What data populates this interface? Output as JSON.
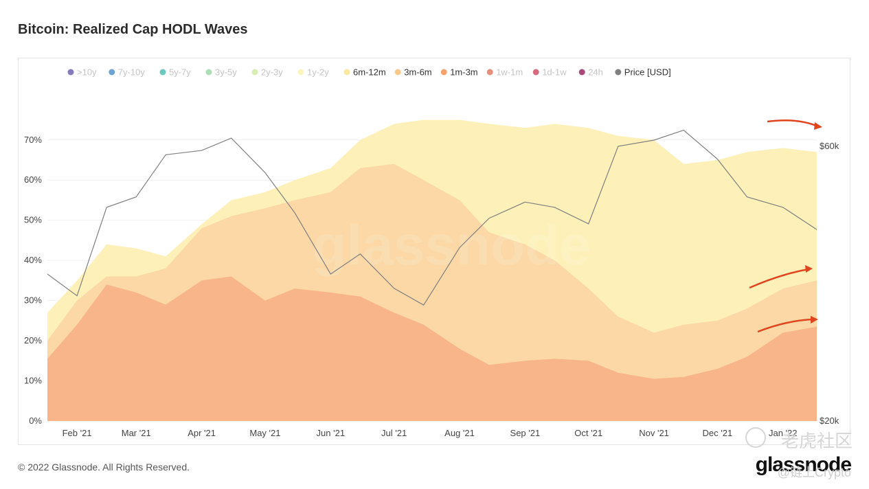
{
  "title": "Bitcoin: Realized Cap HODL Waves",
  "footer": {
    "copyright": "© 2022 Glassnode. All Rights Reserved.",
    "logo": "glassnode"
  },
  "watermarks": {
    "chart_center": "glassnode",
    "cn_community": "老虎社区",
    "handle": "@链上Crypto"
  },
  "chart_data": {
    "type": "area",
    "title": "Bitcoin: Realized Cap HODL Waves",
    "stacked": true,
    "legend_position": "top",
    "legend": [
      {
        "name": ">10y",
        "color": "#5b4ea6",
        "dim": true
      },
      {
        "name": "7y-10y",
        "color": "#3d86c6",
        "dim": true
      },
      {
        "name": "5y-7y",
        "color": "#39b3a7",
        "dim": true
      },
      {
        "name": "3y-5y",
        "color": "#8fd19e",
        "dim": true
      },
      {
        "name": "2y-3y",
        "color": "#cbe89b",
        "dim": true
      },
      {
        "name": "1y-2y",
        "color": "#f7f3a8",
        "dim": true
      },
      {
        "name": "6m-12m",
        "color": "#fbe9a3",
        "dim": false
      },
      {
        "name": "3m-6m",
        "color": "#f9c98a",
        "dim": false
      },
      {
        "name": "1m-3m",
        "color": "#f4a36c",
        "dim": false
      },
      {
        "name": "1w-1m",
        "color": "#e06a51",
        "dim": true
      },
      {
        "name": "1d-1w",
        "color": "#c93a55",
        "dim": true
      },
      {
        "name": "24h",
        "color": "#8a0d4c",
        "dim": true
      },
      {
        "name": "Price [USD]",
        "color": "#7f7f7f",
        "dim": false
      }
    ],
    "y_left_ticks": [
      "0%",
      "10%",
      "20%",
      "30%",
      "40%",
      "50%",
      "60%",
      "70%"
    ],
    "y_left_range": [
      0,
      78
    ],
    "y_right_ticks": [
      "$20k",
      "$60k"
    ],
    "y_right_log": true,
    "x_tick_labels": [
      "Feb '21",
      "Mar '21",
      "Apr '21",
      "May '21",
      "Jun '21",
      "Jul '21",
      "Aug '21",
      "Sep '21",
      "Oct '21",
      "Nov '21",
      "Dec '21",
      "Jan '22"
    ],
    "x": [
      "2021-01-18",
      "2021-02-01",
      "2021-02-15",
      "2021-03-01",
      "2021-03-15",
      "2021-04-01",
      "2021-04-15",
      "2021-05-01",
      "2021-05-15",
      "2021-06-01",
      "2021-06-15",
      "2021-07-01",
      "2021-07-15",
      "2021-08-01",
      "2021-08-15",
      "2021-09-01",
      "2021-09-15",
      "2021-10-01",
      "2021-10-15",
      "2021-11-01",
      "2021-11-15",
      "2021-12-01",
      "2021-12-15",
      "2022-01-01",
      "2022-01-17"
    ],
    "series": [
      {
        "name": "1m-3m",
        "color": "#f9b58a",
        "values": [
          15.5,
          24,
          34,
          32,
          29,
          35,
          36,
          30,
          33,
          32,
          31,
          27,
          24,
          18,
          14,
          15,
          15.5,
          15,
          12,
          10.5,
          11,
          13,
          16,
          22,
          23.5
        ]
      },
      {
        "name": "3m-6m",
        "color": "#fbd8a6",
        "values": [
          20,
          30,
          36,
          36,
          38,
          48,
          51,
          53,
          55,
          57,
          63,
          64,
          60,
          55,
          47,
          44,
          40,
          33,
          26,
          22,
          24,
          25,
          28,
          33,
          35
        ]
      },
      {
        "name": "6m-12m",
        "color": "#fdf0b8",
        "values": [
          27,
          35,
          44,
          43,
          41,
          49,
          55,
          57,
          60,
          63,
          70,
          74,
          75,
          75,
          74,
          73,
          74,
          73,
          71,
          70,
          64,
          65,
          67,
          68,
          67
        ]
      }
    ],
    "price_usd": [
      36000,
      33000,
      47000,
      49000,
      58000,
      59000,
      62000,
      54000,
      46000,
      36000,
      39000,
      34000,
      31800,
      40000,
      45000,
      48000,
      47000,
      44000,
      60000,
      61500,
      64000,
      57000,
      49000,
      47000,
      43000
    ]
  }
}
